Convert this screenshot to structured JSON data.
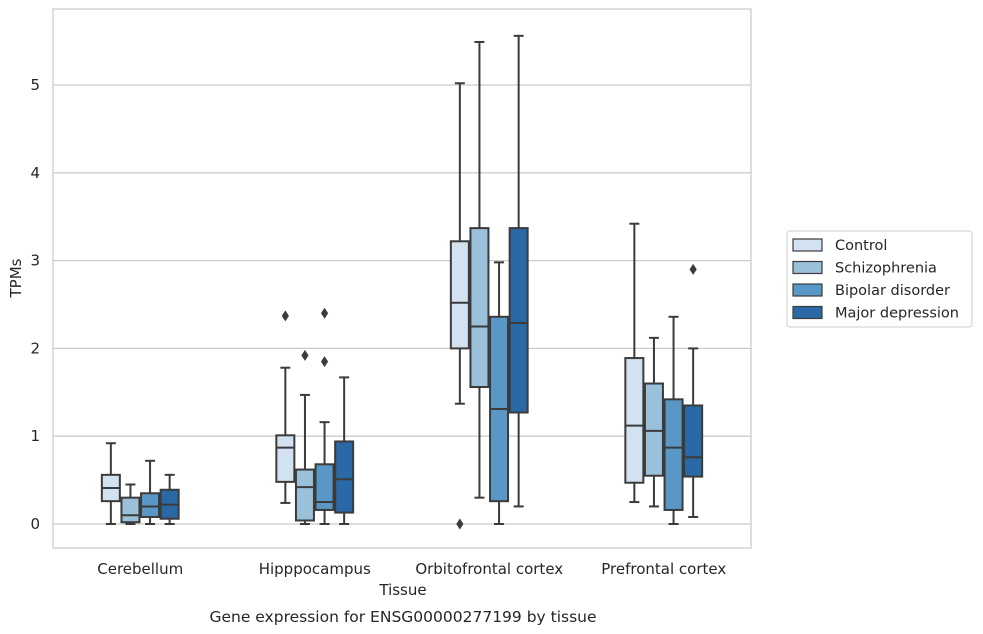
{
  "chart_data": {
    "type": "box",
    "caption": "Gene expression for ENSG00000277199 by tissue",
    "xlabel": "Tissue",
    "ylabel": "TPMs",
    "ylim": [
      -0.27,
      5.85
    ],
    "yticks": [
      0,
      1,
      2,
      3,
      4,
      5
    ],
    "grid": "horizontal",
    "legend_position": "right",
    "categories": [
      "Cerebellum",
      "Hipppocampus",
      "Orbitofrontal cortex",
      "Prefrontal cortex"
    ],
    "series": [
      {
        "name": "Control",
        "color": "#d2e2f0",
        "boxes": [
          {
            "q1": 0.26,
            "median": 0.41,
            "q3": 0.56,
            "whisker_low": 0.0,
            "whisker_high": 0.92,
            "outliers": []
          },
          {
            "q1": 0.48,
            "median": 0.87,
            "q3": 1.01,
            "whisker_low": 0.24,
            "whisker_high": 1.78,
            "outliers": [
              2.37
            ]
          },
          {
            "q1": 2.0,
            "median": 2.52,
            "q3": 3.22,
            "whisker_low": 1.37,
            "whisker_high": 5.02,
            "outliers": [
              0.0
            ]
          },
          {
            "q1": 0.47,
            "median": 1.12,
            "q3": 1.89,
            "whisker_low": 0.25,
            "whisker_high": 3.42,
            "outliers": []
          }
        ]
      },
      {
        "name": "Schizophrenia",
        "color": "#9ac0da",
        "boxes": [
          {
            "q1": 0.02,
            "median": 0.1,
            "q3": 0.3,
            "whisker_low": 0.0,
            "whisker_high": 0.45,
            "outliers": []
          },
          {
            "q1": 0.04,
            "median": 0.42,
            "q3": 0.62,
            "whisker_low": 0.0,
            "whisker_high": 1.47,
            "outliers": [
              1.92
            ]
          },
          {
            "q1": 1.56,
            "median": 2.25,
            "q3": 3.37,
            "whisker_low": 0.3,
            "whisker_high": 5.49,
            "outliers": []
          },
          {
            "q1": 0.55,
            "median": 1.06,
            "q3": 1.6,
            "whisker_low": 0.2,
            "whisker_high": 2.12,
            "outliers": []
          }
        ]
      },
      {
        "name": "Bipolar disorder",
        "color": "#5998c6",
        "boxes": [
          {
            "q1": 0.08,
            "median": 0.2,
            "q3": 0.35,
            "whisker_low": 0.0,
            "whisker_high": 0.72,
            "outliers": []
          },
          {
            "q1": 0.16,
            "median": 0.25,
            "q3": 0.68,
            "whisker_low": 0.0,
            "whisker_high": 1.16,
            "outliers": [
              1.85,
              2.4
            ]
          },
          {
            "q1": 0.26,
            "median": 1.31,
            "q3": 2.36,
            "whisker_low": 0.0,
            "whisker_high": 2.98,
            "outliers": []
          },
          {
            "q1": 0.16,
            "median": 0.87,
            "q3": 1.42,
            "whisker_low": 0.0,
            "whisker_high": 2.36,
            "outliers": []
          }
        ]
      },
      {
        "name": "Major depression",
        "color": "#2a68a6",
        "boxes": [
          {
            "q1": 0.06,
            "median": 0.22,
            "q3": 0.39,
            "whisker_low": 0.0,
            "whisker_high": 0.56,
            "outliers": []
          },
          {
            "q1": 0.13,
            "median": 0.51,
            "q3": 0.94,
            "whisker_low": 0.0,
            "whisker_high": 1.67,
            "outliers": []
          },
          {
            "q1": 1.27,
            "median": 2.29,
            "q3": 3.37,
            "whisker_low": 0.2,
            "whisker_high": 5.56,
            "outliers": []
          },
          {
            "q1": 0.54,
            "median": 0.76,
            "q3": 1.35,
            "whisker_low": 0.08,
            "whisker_high": 2.0,
            "outliers": [
              2.9
            ]
          }
        ]
      }
    ]
  }
}
